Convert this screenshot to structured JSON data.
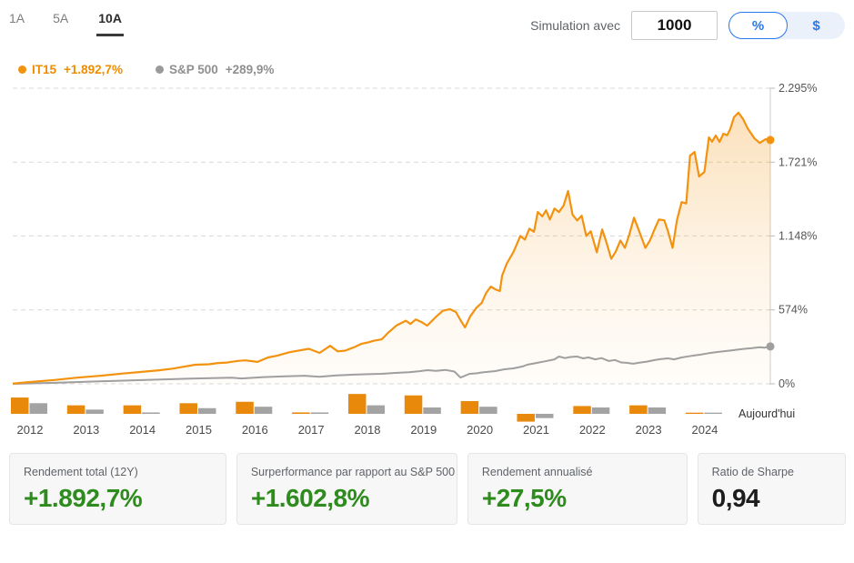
{
  "header": {
    "tabs": [
      {
        "label": "1A",
        "active": false
      },
      {
        "label": "5A",
        "active": false
      },
      {
        "label": "10A",
        "active": true
      }
    ],
    "simulation_label": "Simulation avec",
    "simulation_value": "1000",
    "unit_toggle": {
      "percent_label": "%",
      "dollar_label": "$",
      "selected": "percent"
    }
  },
  "legend": {
    "series1_name": "IT15",
    "series1_value": "+1.892,7%",
    "series2_name": "S&P 500",
    "series2_value": "+289,9%"
  },
  "colors": {
    "accent_orange": "#f3920e",
    "bar_orange": "#e8890c",
    "accent_gray": "#9f9f9f",
    "bar_gray": "#a3a3a3",
    "positive_green": "#2e8b1e",
    "toggle_blue": "#2b77f0"
  },
  "chart_data": {
    "type": "line",
    "title": "",
    "xlabel": "",
    "ylabel": "",
    "ylim": [
      0,
      2295
    ],
    "grid": "dashed-horizontal",
    "legend_position": "top-left",
    "yticks": [
      {
        "value": 0,
        "label": "0%"
      },
      {
        "value": 574,
        "label": "574%"
      },
      {
        "value": 1148,
        "label": "1.148%"
      },
      {
        "value": 1721,
        "label": "1.721%"
      },
      {
        "value": 2295,
        "label": "2.295%"
      }
    ],
    "series": [
      {
        "name": "IT15",
        "color": "#f3920e",
        "total_return": "+1.892,7%",
        "points": [
          [
            0.0,
            2
          ],
          [
            0.025,
            15
          ],
          [
            0.055,
            30
          ],
          [
            0.085,
            48
          ],
          [
            0.115,
            62
          ],
          [
            0.145,
            80
          ],
          [
            0.175,
            95
          ],
          [
            0.193,
            105
          ],
          [
            0.211,
            118
          ],
          [
            0.223,
            130
          ],
          [
            0.241,
            148
          ],
          [
            0.259,
            152
          ],
          [
            0.271,
            162
          ],
          [
            0.283,
            165
          ],
          [
            0.297,
            178
          ],
          [
            0.307,
            182
          ],
          [
            0.323,
            170
          ],
          [
            0.337,
            205
          ],
          [
            0.349,
            218
          ],
          [
            0.365,
            245
          ],
          [
            0.379,
            260
          ],
          [
            0.391,
            272
          ],
          [
            0.405,
            240
          ],
          [
            0.419,
            295
          ],
          [
            0.429,
            252
          ],
          [
            0.439,
            258
          ],
          [
            0.451,
            285
          ],
          [
            0.46,
            310
          ],
          [
            0.469,
            322
          ],
          [
            0.477,
            335
          ],
          [
            0.487,
            345
          ],
          [
            0.496,
            400
          ],
          [
            0.507,
            455
          ],
          [
            0.519,
            490
          ],
          [
            0.525,
            465
          ],
          [
            0.532,
            500
          ],
          [
            0.54,
            478
          ],
          [
            0.547,
            452
          ],
          [
            0.559,
            522
          ],
          [
            0.568,
            568
          ],
          [
            0.577,
            580
          ],
          [
            0.585,
            558
          ],
          [
            0.591,
            494
          ],
          [
            0.597,
            438
          ],
          [
            0.604,
            525
          ],
          [
            0.612,
            590
          ],
          [
            0.619,
            628
          ],
          [
            0.625,
            706
          ],
          [
            0.631,
            755
          ],
          [
            0.637,
            734
          ],
          [
            0.643,
            720
          ],
          [
            0.646,
            840
          ],
          [
            0.652,
            932
          ],
          [
            0.661,
            1024
          ],
          [
            0.67,
            1148
          ],
          [
            0.676,
            1120
          ],
          [
            0.682,
            1205
          ],
          [
            0.688,
            1180
          ],
          [
            0.693,
            1334
          ],
          [
            0.699,
            1300
          ],
          [
            0.704,
            1347
          ],
          [
            0.709,
            1276
          ],
          [
            0.715,
            1361
          ],
          [
            0.721,
            1334
          ],
          [
            0.727,
            1383
          ],
          [
            0.733,
            1497
          ],
          [
            0.739,
            1312
          ],
          [
            0.745,
            1269
          ],
          [
            0.751,
            1305
          ],
          [
            0.757,
            1148
          ],
          [
            0.763,
            1184
          ],
          [
            0.771,
            1021
          ],
          [
            0.778,
            1198
          ],
          [
            0.784,
            1092
          ],
          [
            0.79,
            971
          ],
          [
            0.796,
            1028
          ],
          [
            0.802,
            1113
          ],
          [
            0.808,
            1056
          ],
          [
            0.814,
            1163
          ],
          [
            0.82,
            1290
          ],
          [
            0.826,
            1198
          ],
          [
            0.835,
            1056
          ],
          [
            0.841,
            1113
          ],
          [
            0.847,
            1198
          ],
          [
            0.853,
            1276
          ],
          [
            0.86,
            1270
          ],
          [
            0.865,
            1184
          ],
          [
            0.871,
            1056
          ],
          [
            0.877,
            1276
          ],
          [
            0.883,
            1411
          ],
          [
            0.889,
            1400
          ],
          [
            0.894,
            1772
          ],
          [
            0.9,
            1800
          ],
          [
            0.906,
            1609
          ],
          [
            0.913,
            1645
          ],
          [
            0.919,
            1914
          ],
          [
            0.923,
            1880
          ],
          [
            0.928,
            1928
          ],
          [
            0.933,
            1878
          ],
          [
            0.938,
            1942
          ],
          [
            0.943,
            1930
          ],
          [
            0.947,
            1977
          ],
          [
            0.952,
            2070
          ],
          [
            0.958,
            2105
          ],
          [
            0.964,
            2056
          ],
          [
            0.97,
            1984
          ],
          [
            0.979,
            1906
          ],
          [
            0.986,
            1870
          ],
          [
            0.994,
            1900
          ],
          [
            1.0,
            1893
          ]
        ]
      },
      {
        "name": "S&P 500",
        "color": "#9f9f9f",
        "total_return": "+289,9%",
        "points": [
          [
            0.0,
            0
          ],
          [
            0.055,
            8
          ],
          [
            0.115,
            20
          ],
          [
            0.175,
            30
          ],
          [
            0.235,
            40
          ],
          [
            0.289,
            47
          ],
          [
            0.302,
            42
          ],
          [
            0.331,
            52
          ],
          [
            0.355,
            57
          ],
          [
            0.385,
            63
          ],
          [
            0.405,
            55
          ],
          [
            0.427,
            65
          ],
          [
            0.451,
            71
          ],
          [
            0.469,
            75
          ],
          [
            0.487,
            78
          ],
          [
            0.505,
            85
          ],
          [
            0.523,
            90
          ],
          [
            0.537,
            98
          ],
          [
            0.547,
            106
          ],
          [
            0.559,
            100
          ],
          [
            0.571,
            108
          ],
          [
            0.583,
            95
          ],
          [
            0.591,
            49
          ],
          [
            0.603,
            78
          ],
          [
            0.613,
            82
          ],
          [
            0.619,
            88
          ],
          [
            0.628,
            94
          ],
          [
            0.637,
            99
          ],
          [
            0.649,
            113
          ],
          [
            0.661,
            120
          ],
          [
            0.673,
            135
          ],
          [
            0.679,
            148
          ],
          [
            0.691,
            162
          ],
          [
            0.703,
            175
          ],
          [
            0.715,
            190
          ],
          [
            0.721,
            212
          ],
          [
            0.729,
            200
          ],
          [
            0.736,
            208
          ],
          [
            0.745,
            212
          ],
          [
            0.753,
            198
          ],
          [
            0.76,
            205
          ],
          [
            0.769,
            190
          ],
          [
            0.777,
            200
          ],
          [
            0.787,
            177
          ],
          [
            0.795,
            185
          ],
          [
            0.803,
            166
          ],
          [
            0.81,
            163
          ],
          [
            0.819,
            156
          ],
          [
            0.829,
            166
          ],
          [
            0.837,
            172
          ],
          [
            0.847,
            184
          ],
          [
            0.856,
            192
          ],
          [
            0.865,
            198
          ],
          [
            0.873,
            190
          ],
          [
            0.883,
            205
          ],
          [
            0.892,
            213
          ],
          [
            0.9,
            220
          ],
          [
            0.908,
            227
          ],
          [
            0.919,
            238
          ],
          [
            0.928,
            245
          ],
          [
            0.938,
            252
          ],
          [
            0.949,
            260
          ],
          [
            0.958,
            266
          ],
          [
            0.966,
            272
          ],
          [
            0.976,
            277
          ],
          [
            0.986,
            284
          ],
          [
            0.992,
            280
          ],
          [
            1.0,
            290
          ]
        ]
      }
    ],
    "annual_bars": {
      "categories": [
        "2012",
        "2013",
        "2014",
        "2015",
        "2016",
        "2017",
        "2018",
        "2019",
        "2020",
        "2021",
        "2022",
        "2023",
        "2024"
      ],
      "series": [
        {
          "name": "IT15",
          "color": "#e8890c",
          "values": [
            23,
            12,
            12,
            15,
            17,
            2,
            28,
            26,
            18,
            -11,
            11,
            12,
            1
          ]
        },
        {
          "name": "S&P 500",
          "color": "#a3a3a3",
          "values": [
            15,
            6,
            2,
            8,
            10,
            2,
            12,
            9,
            10,
            -6,
            9,
            9,
            1
          ]
        }
      ]
    },
    "today_label": "Aujourd'hui"
  },
  "cards": [
    {
      "label": "Rendement total (12Y)",
      "value": "+1.892,7%",
      "value_color": "#2e8b1e"
    },
    {
      "label": "Surperformance par rapport au S&P 500",
      "value": "+1.602,8%",
      "value_color": "#2e8b1e"
    },
    {
      "label": "Rendement annualisé",
      "value": "+27,5%",
      "value_color": "#2e8b1e"
    },
    {
      "label": "Ratio de Sharpe",
      "value": "0,94",
      "value_color": "#1d1d1d"
    }
  ]
}
